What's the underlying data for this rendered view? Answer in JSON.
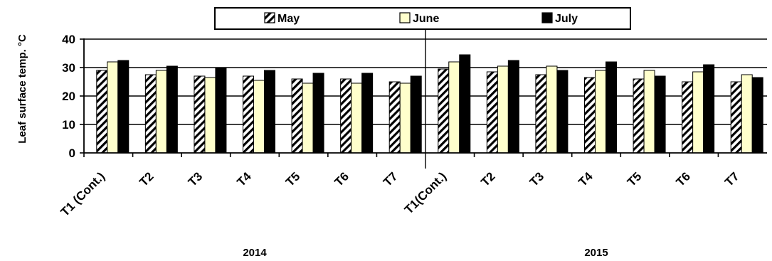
{
  "chart_data": {
    "type": "bar",
    "ylabel": "Leaf surface temp. °C",
    "xlabel": "",
    "ylim": [
      0,
      40
    ],
    "yticks": [
      0,
      10,
      20,
      30,
      40
    ],
    "grid": true,
    "legend_position": "top-center",
    "groups": [
      {
        "label": "2014",
        "categories": [
          "T1 (Cont.)",
          "T2",
          "T3",
          "T4",
          "T5",
          "T6",
          "T7"
        ],
        "series": [
          {
            "name": "May",
            "values": [
              29,
              27.5,
              27,
              27,
              26,
              26,
              25
            ]
          },
          {
            "name": "June",
            "values": [
              32,
              29,
              26.5,
              25.5,
              24.5,
              24.5,
              24.5
            ]
          },
          {
            "name": "July",
            "values": [
              32.5,
              30.5,
              30,
              29,
              28,
              28,
              27
            ]
          }
        ]
      },
      {
        "label": "2015",
        "categories": [
          "T1(Cont.)",
          "T2",
          "T3",
          "T4",
          "T5",
          "T6",
          "T7"
        ],
        "series": [
          {
            "name": "May",
            "values": [
              29.5,
              28.5,
              27.5,
              26.5,
              26,
              25,
              25
            ]
          },
          {
            "name": "June",
            "values": [
              32,
              30.5,
              30.5,
              29,
              29,
              28.5,
              27.5
            ]
          },
          {
            "name": "July",
            "values": [
              34.5,
              32.5,
              29,
              32,
              27,
              31,
              26.5
            ]
          }
        ]
      }
    ],
    "series_styles": {
      "May": {
        "fill": "pattern-diagonal-hatch",
        "stroke": "#000000"
      },
      "June": {
        "fill": "#ffffcc",
        "stroke": "#000000"
      },
      "July": {
        "fill": "#000000",
        "stroke": "#000000"
      }
    }
  }
}
